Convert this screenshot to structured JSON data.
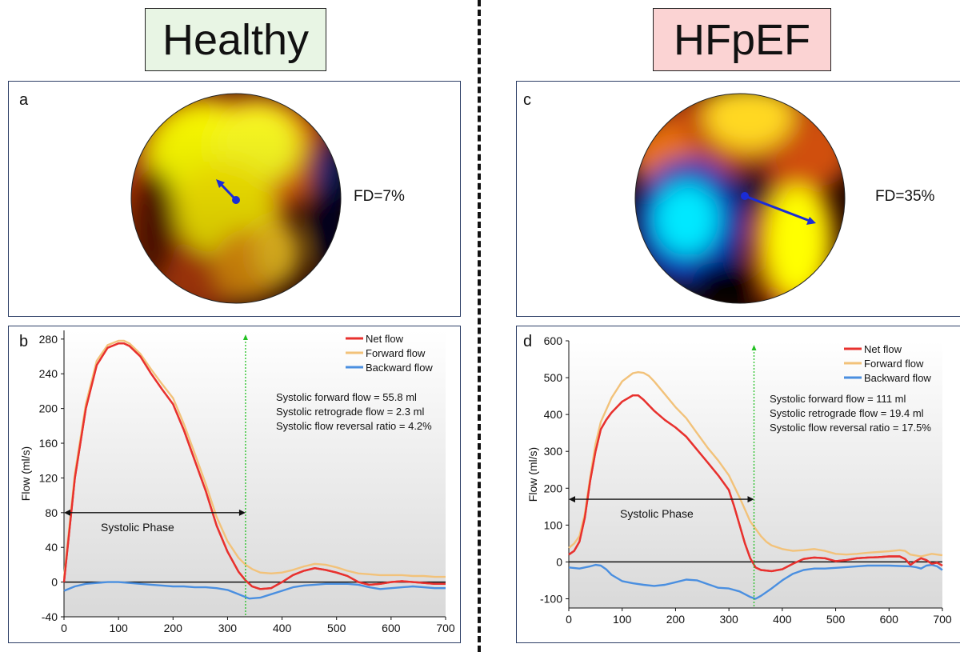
{
  "titles": {
    "left": "Healthy",
    "right": "HFpEF"
  },
  "panels": {
    "a": {
      "letter": "a",
      "fd": "FD=7%"
    },
    "c": {
      "letter": "c",
      "fd": "FD=35%"
    },
    "b": {
      "letter": "b"
    },
    "d": {
      "letter": "d"
    }
  },
  "chart_data": [
    {
      "panel": "b",
      "type": "line",
      "ylabel": "Flow (ml/s)",
      "xlim": [
        0,
        700
      ],
      "ylim": [
        -40,
        290
      ],
      "xticks": [
        0,
        100,
        200,
        300,
        400,
        500,
        600,
        700
      ],
      "yticks": [
        -40,
        0,
        40,
        80,
        120,
        160,
        200,
        240,
        280
      ],
      "legend": [
        "Net flow",
        "Forward flow",
        "Backward flow"
      ],
      "legend_placement": "top-right",
      "annotations": [
        "Systolic forward flow = 55.8 ml",
        "Systolic retrograde flow = 2.3 ml",
        "Systolic flow reversal ratio = 4.2%"
      ],
      "phase_label": "Systolic Phase",
      "phase_range": [
        0,
        333
      ],
      "phase_y": 80,
      "divider_x": 333,
      "series": [
        {
          "name": "Net flow",
          "color": "#e8312e",
          "x": [
            0,
            10,
            20,
            40,
            60,
            80,
            100,
            110,
            120,
            140,
            160,
            180,
            200,
            220,
            240,
            260,
            280,
            300,
            320,
            333,
            345,
            360,
            380,
            400,
            420,
            440,
            460,
            480,
            500,
            520,
            540,
            560,
            580,
            600,
            620,
            640,
            660,
            680,
            700
          ],
          "y": [
            0,
            60,
            120,
            200,
            250,
            270,
            275,
            275,
            272,
            260,
            240,
            222,
            205,
            175,
            140,
            105,
            65,
            35,
            12,
            2,
            -5,
            -8,
            -7,
            0,
            8,
            13,
            16,
            14,
            11,
            7,
            0,
            -3,
            -2,
            0,
            1,
            0,
            -1,
            -2,
            -2
          ]
        },
        {
          "name": "Forward flow",
          "color": "#f2c27a",
          "x": [
            0,
            10,
            20,
            40,
            60,
            80,
            100,
            110,
            120,
            140,
            160,
            180,
            200,
            220,
            240,
            260,
            280,
            300,
            320,
            333,
            345,
            360,
            380,
            400,
            420,
            440,
            460,
            480,
            500,
            520,
            540,
            560,
            580,
            600,
            620,
            640,
            660,
            680,
            700
          ],
          "y": [
            5,
            65,
            125,
            205,
            255,
            273,
            278,
            278,
            275,
            263,
            245,
            228,
            212,
            182,
            148,
            113,
            75,
            47,
            28,
            20,
            15,
            11,
            10,
            11,
            14,
            18,
            21,
            20,
            17,
            13,
            10,
            9,
            8,
            8,
            8,
            7,
            7,
            6,
            6
          ]
        },
        {
          "name": "Backward flow",
          "color": "#4a8fe0",
          "x": [
            0,
            20,
            40,
            60,
            80,
            100,
            120,
            140,
            160,
            180,
            200,
            220,
            240,
            260,
            280,
            300,
            320,
            340,
            360,
            380,
            400,
            420,
            440,
            460,
            480,
            500,
            520,
            540,
            560,
            580,
            600,
            620,
            640,
            660,
            680,
            700
          ],
          "y": [
            -10,
            -5,
            -2,
            -1,
            0,
            0,
            -1,
            -2,
            -3,
            -4,
            -5,
            -5,
            -6,
            -6,
            -7,
            -9,
            -14,
            -19,
            -18,
            -14,
            -10,
            -6,
            -4,
            -3,
            -2,
            -2,
            -2,
            -3,
            -6,
            -8,
            -7,
            -6,
            -5,
            -6,
            -7,
            -7
          ]
        }
      ]
    },
    {
      "panel": "d",
      "type": "line",
      "ylabel": "Flow (ml/s)",
      "xlim": [
        0,
        700
      ],
      "ylim": [
        -125,
        600
      ],
      "xticks": [
        0,
        100,
        200,
        300,
        400,
        500,
        600,
        700
      ],
      "yticks": [
        -100,
        0,
        100,
        200,
        300,
        400,
        500,
        600
      ],
      "legend": [
        "Net flow",
        "Forward flow",
        "Backward flow"
      ],
      "legend_placement": "top-right",
      "annotations": [
        "Systolic forward flow = 111 ml",
        "Systolic retrograde flow = 19.4 ml",
        "Systolic flow reversal ratio = 17.5%"
      ],
      "phase_label": "Systolic Phase",
      "phase_range": [
        0,
        347
      ],
      "phase_y": 170,
      "divider_x": 347,
      "series": [
        {
          "name": "Net flow",
          "color": "#e8312e",
          "x": [
            0,
            10,
            20,
            30,
            40,
            50,
            60,
            70,
            80,
            100,
            120,
            130,
            140,
            160,
            180,
            200,
            220,
            240,
            260,
            280,
            300,
            310,
            320,
            330,
            340,
            350,
            360,
            380,
            400,
            420,
            440,
            460,
            480,
            500,
            520,
            540,
            560,
            580,
            600,
            620,
            630,
            640,
            650,
            660,
            670,
            680,
            690,
            700
          ],
          "y": [
            20,
            30,
            55,
            120,
            220,
            300,
            360,
            385,
            405,
            435,
            452,
            452,
            440,
            410,
            385,
            365,
            340,
            305,
            270,
            235,
            195,
            150,
            100,
            50,
            10,
            -15,
            -22,
            -25,
            -20,
            -5,
            8,
            12,
            10,
            2,
            5,
            10,
            12,
            13,
            15,
            15,
            8,
            -8,
            2,
            10,
            5,
            -5,
            -2,
            -10
          ]
        },
        {
          "name": "Forward flow",
          "color": "#f2c27a",
          "x": [
            0,
            10,
            20,
            30,
            40,
            50,
            60,
            80,
            100,
            120,
            130,
            140,
            150,
            160,
            180,
            200,
            220,
            240,
            260,
            280,
            300,
            320,
            340,
            350,
            360,
            370,
            380,
            400,
            420,
            440,
            460,
            480,
            500,
            520,
            540,
            560,
            580,
            600,
            620,
            630,
            640,
            660,
            680,
            700
          ],
          "y": [
            38,
            50,
            70,
            130,
            230,
            320,
            380,
            445,
            490,
            512,
            515,
            513,
            505,
            490,
            455,
            420,
            390,
            350,
            310,
            275,
            235,
            175,
            110,
            90,
            70,
            55,
            45,
            35,
            30,
            32,
            35,
            30,
            22,
            20,
            22,
            25,
            27,
            29,
            32,
            30,
            20,
            15,
            22,
            18
          ]
        },
        {
          "name": "Backward flow",
          "color": "#4a8fe0",
          "x": [
            0,
            20,
            40,
            50,
            60,
            70,
            80,
            100,
            120,
            140,
            160,
            180,
            200,
            220,
            240,
            260,
            280,
            300,
            320,
            340,
            350,
            360,
            380,
            400,
            420,
            440,
            460,
            480,
            500,
            520,
            540,
            560,
            580,
            600,
            620,
            640,
            650,
            660,
            670,
            680,
            690,
            700
          ],
          "y": [
            -15,
            -18,
            -12,
            -8,
            -10,
            -20,
            -35,
            -52,
            -58,
            -62,
            -65,
            -62,
            -55,
            -48,
            -50,
            -60,
            -70,
            -72,
            -80,
            -95,
            -100,
            -92,
            -72,
            -50,
            -32,
            -22,
            -18,
            -18,
            -16,
            -14,
            -12,
            -10,
            -10,
            -10,
            -11,
            -12,
            -14,
            -18,
            -10,
            -8,
            -12,
            -22
          ]
        }
      ]
    }
  ]
}
